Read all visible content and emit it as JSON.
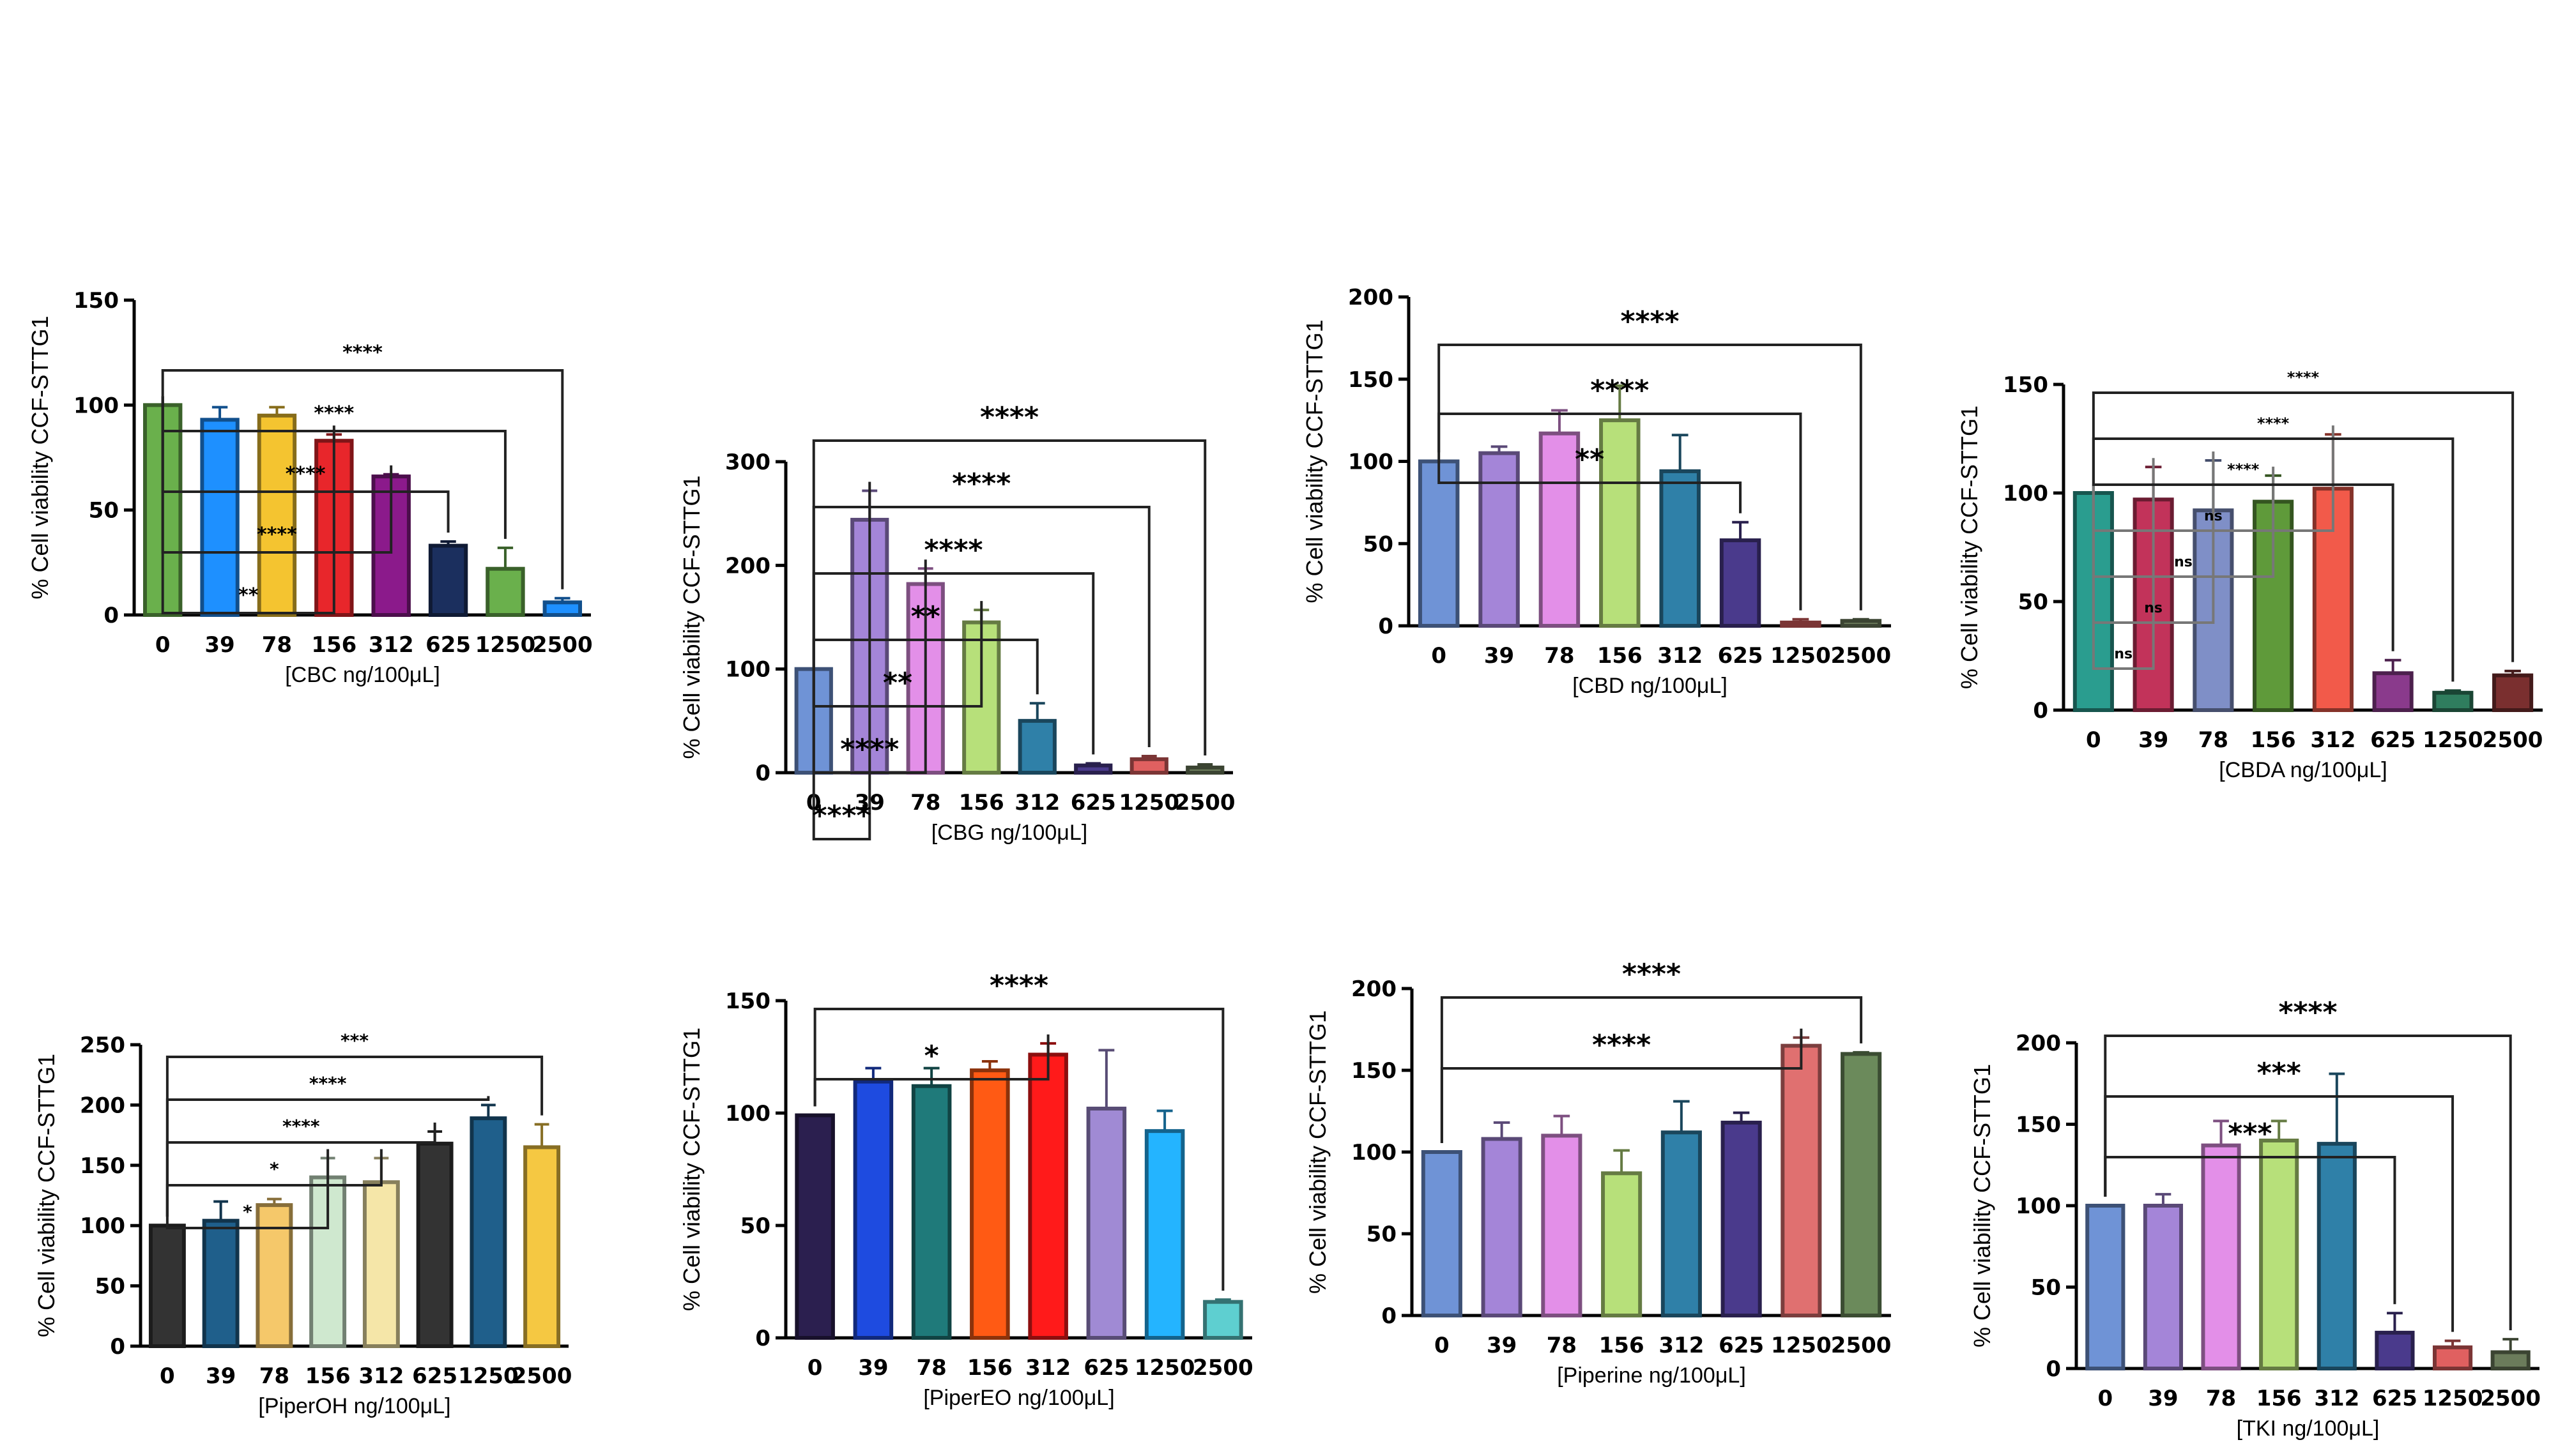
{
  "chart_data": [
    {
      "type": "bar",
      "id": "cbc",
      "categories": [
        "0",
        "39",
        "78",
        "156",
        "312",
        "625",
        "1250",
        "2500"
      ],
      "values": [
        100,
        93,
        95,
        83,
        66,
        33,
        22,
        6
      ],
      "errors": [
        0,
        6,
        4,
        3,
        1,
        2,
        10,
        2
      ],
      "colors": [
        "#6ab04c",
        "#1e90ff",
        "#f4c430",
        "#e8262b",
        "#8b1a8b",
        "#1b2f5e",
        "#6ab04c",
        "#1e90ff"
      ],
      "xlabel": "[CBC ng/100μL]",
      "ylabel": "% Cell viability CCF-STTG1",
      "ylim": [
        0,
        150
      ],
      "yticks": [
        0,
        50,
        100,
        150
      ],
      "significance": [
        {
          "to": "156",
          "label": "**"
        },
        {
          "to": "312",
          "label": "****"
        },
        {
          "to": "625",
          "label": "****"
        },
        {
          "to": "1250",
          "label": "****"
        },
        {
          "to": "2500",
          "label": "****"
        }
      ]
    },
    {
      "type": "bar",
      "id": "cbg",
      "categories": [
        "0",
        "39",
        "78",
        "156",
        "312",
        "625",
        "1250",
        "2500"
      ],
      "values": [
        100,
        244,
        182,
        145,
        50,
        7,
        13,
        5
      ],
      "errors": [
        0,
        28,
        15,
        12,
        17,
        2,
        3,
        3
      ],
      "colors": [
        "#6f93d6",
        "#a485d8",
        "#e38fe8",
        "#b7e07a",
        "#2f80a8",
        "#4a3a8c",
        "#e06060",
        "#6b7c5b"
      ],
      "xlabel": "[CBG ng/100μL]",
      "ylabel": "% Cell viability CCF-STTG1",
      "ylim": [
        0,
        300
      ],
      "yticks": [
        0,
        100,
        200,
        300
      ],
      "significance": [
        {
          "to": "39",
          "label": "****"
        },
        {
          "to": "78",
          "label": "****"
        },
        {
          "to": "156",
          "label": "**"
        },
        {
          "to": "312",
          "label": "**"
        },
        {
          "to": "625",
          "label": "****"
        },
        {
          "to": "1250",
          "label": "****"
        },
        {
          "to": "2500",
          "label": "****"
        }
      ]
    },
    {
      "type": "bar",
      "id": "cbd",
      "categories": [
        "0",
        "39",
        "78",
        "156",
        "312",
        "625",
        "1250",
        "2500"
      ],
      "values": [
        100,
        105,
        117,
        125,
        94,
        52,
        2,
        3
      ],
      "errors": [
        0,
        4,
        14,
        21,
        22,
        11,
        2,
        1
      ],
      "colors": [
        "#6f93d6",
        "#a485d8",
        "#e38fe8",
        "#b7e07a",
        "#2f80a8",
        "#4a3a8c",
        "#e06060",
        "#6b7c5b"
      ],
      "xlabel": "[CBD ng/100μL]",
      "ylabel": "% Cell viability CCF-STTG1",
      "ylim": [
        0,
        200
      ],
      "yticks": [
        0,
        50,
        100,
        150,
        200
      ],
      "significance": [
        {
          "to": "625",
          "label": "**"
        },
        {
          "to": "1250",
          "label": "****"
        },
        {
          "to": "2500",
          "label": "****"
        }
      ]
    },
    {
      "type": "bar",
      "id": "cbda",
      "categories": [
        "0",
        "39",
        "78",
        "156",
        "312",
        "625",
        "1250",
        "2500"
      ],
      "values": [
        100,
        97,
        92,
        96,
        102,
        17,
        8,
        16
      ],
      "errors": [
        0,
        15,
        23,
        12,
        25,
        6,
        1,
        2
      ],
      "colors": [
        "#2a9d8f",
        "#c2335a",
        "#7f8fc7",
        "#5f9a3a",
        "#f25a4a",
        "#8a3a8c",
        "#2f7d5e",
        "#7a2f2f"
      ],
      "xlabel": "[CBDA ng/100μL]",
      "ylabel": "% Cell viability CCF-STTG1",
      "ylim": [
        0,
        150
      ],
      "yticks": [
        0,
        50,
        100,
        150
      ],
      "significance": [
        {
          "to": "39",
          "label": "ns"
        },
        {
          "to": "78",
          "label": "ns"
        },
        {
          "to": "156",
          "label": "ns"
        },
        {
          "to": "312",
          "label": "ns"
        },
        {
          "to": "625",
          "label": "****"
        },
        {
          "to": "1250",
          "label": "****"
        },
        {
          "to": "2500",
          "label": "****"
        }
      ]
    },
    {
      "type": "bar",
      "id": "piperoh",
      "categories": [
        "0",
        "39",
        "78",
        "156",
        "312",
        "625",
        "1250",
        "2500"
      ],
      "values": [
        100,
        104,
        117,
        140,
        136,
        168,
        189,
        165
      ],
      "errors": [
        0,
        16,
        5,
        16,
        20,
        10,
        11,
        19
      ],
      "colors": [
        "#333333",
        "#1f5f8b",
        "#f5c86a",
        "#cfe8cf",
        "#f5e6a8",
        "#333333",
        "#1f5f8b",
        "#f5c842"
      ],
      "xlabel": "[PiperOH ng/100μL]",
      "ylabel": "% Cell viability CCF-STTG1",
      "ylim": [
        0,
        250
      ],
      "yticks": [
        0,
        50,
        100,
        150,
        200,
        250
      ],
      "significance": [
        {
          "to": "156",
          "label": "*"
        },
        {
          "to": "312",
          "label": "*"
        },
        {
          "to": "625",
          "label": "****"
        },
        {
          "to": "1250",
          "label": "****"
        },
        {
          "to": "2500",
          "label": "***"
        }
      ]
    },
    {
      "type": "bar",
      "id": "pipereo",
      "categories": [
        "0",
        "39",
        "78",
        "156",
        "312",
        "625",
        "1250",
        "2500"
      ],
      "values": [
        99,
        114,
        112,
        119,
        126,
        102,
        92,
        16
      ],
      "errors": [
        0,
        6,
        8,
        4,
        5,
        26,
        9,
        1
      ],
      "colors": [
        "#2b1f4f",
        "#1e4be0",
        "#1f7a7a",
        "#ff5a14",
        "#ff1a1a",
        "#a08ad4",
        "#24b4ff",
        "#5ecfd0"
      ],
      "xlabel": "[PiperEO ng/100μL]",
      "ylabel": "% Cell viability CCF-STTG1",
      "ylim": [
        0,
        150
      ],
      "yticks": [
        0,
        50,
        100,
        150
      ],
      "significance": [
        {
          "to": "312",
          "label": "*"
        },
        {
          "to": "2500",
          "label": "****"
        }
      ]
    },
    {
      "type": "bar",
      "id": "piperine",
      "categories": [
        "0",
        "39",
        "78",
        "156",
        "312",
        "625",
        "1250",
        "2500"
      ],
      "values": [
        100,
        108,
        110,
        87,
        112,
        118,
        165,
        160
      ],
      "errors": [
        0,
        10,
        12,
        14,
        19,
        6,
        5,
        1
      ],
      "colors": [
        "#6f93d6",
        "#a485d8",
        "#e38fe8",
        "#b7e07a",
        "#2f80a8",
        "#4a3a8c",
        "#e07070",
        "#6b8a5b"
      ],
      "xlabel": "[Piperine ng/100μL]",
      "ylabel": "% Cell viability CCF-STTG1",
      "ylim": [
        0,
        200
      ],
      "yticks": [
        0,
        50,
        100,
        150,
        200
      ],
      "significance": [
        {
          "to": "1250",
          "label": "****"
        },
        {
          "to": "2500",
          "label": "****"
        }
      ]
    },
    {
      "type": "bar",
      "id": "tki",
      "categories": [
        "0",
        "39",
        "78",
        "156",
        "312",
        "625",
        "1250",
        "2500"
      ],
      "values": [
        100,
        100,
        137,
        140,
        138,
        22,
        13,
        10
      ],
      "errors": [
        0,
        7,
        15,
        12,
        43,
        12,
        4,
        8
      ],
      "colors": [
        "#6f93d6",
        "#a485d8",
        "#e38fe8",
        "#b7e07a",
        "#2f80a8",
        "#4a3a8c",
        "#e06060",
        "#6b7c5b"
      ],
      "xlabel": "[TKI ng/100μL]",
      "ylabel": "% Cell viability CCF-STTG1",
      "ylim": [
        0,
        200
      ],
      "yticks": [
        0,
        50,
        100,
        150,
        200
      ],
      "significance": [
        {
          "to": "625",
          "label": "***"
        },
        {
          "to": "1250",
          "label": "***"
        },
        {
          "to": "2500",
          "label": "****"
        }
      ]
    }
  ]
}
